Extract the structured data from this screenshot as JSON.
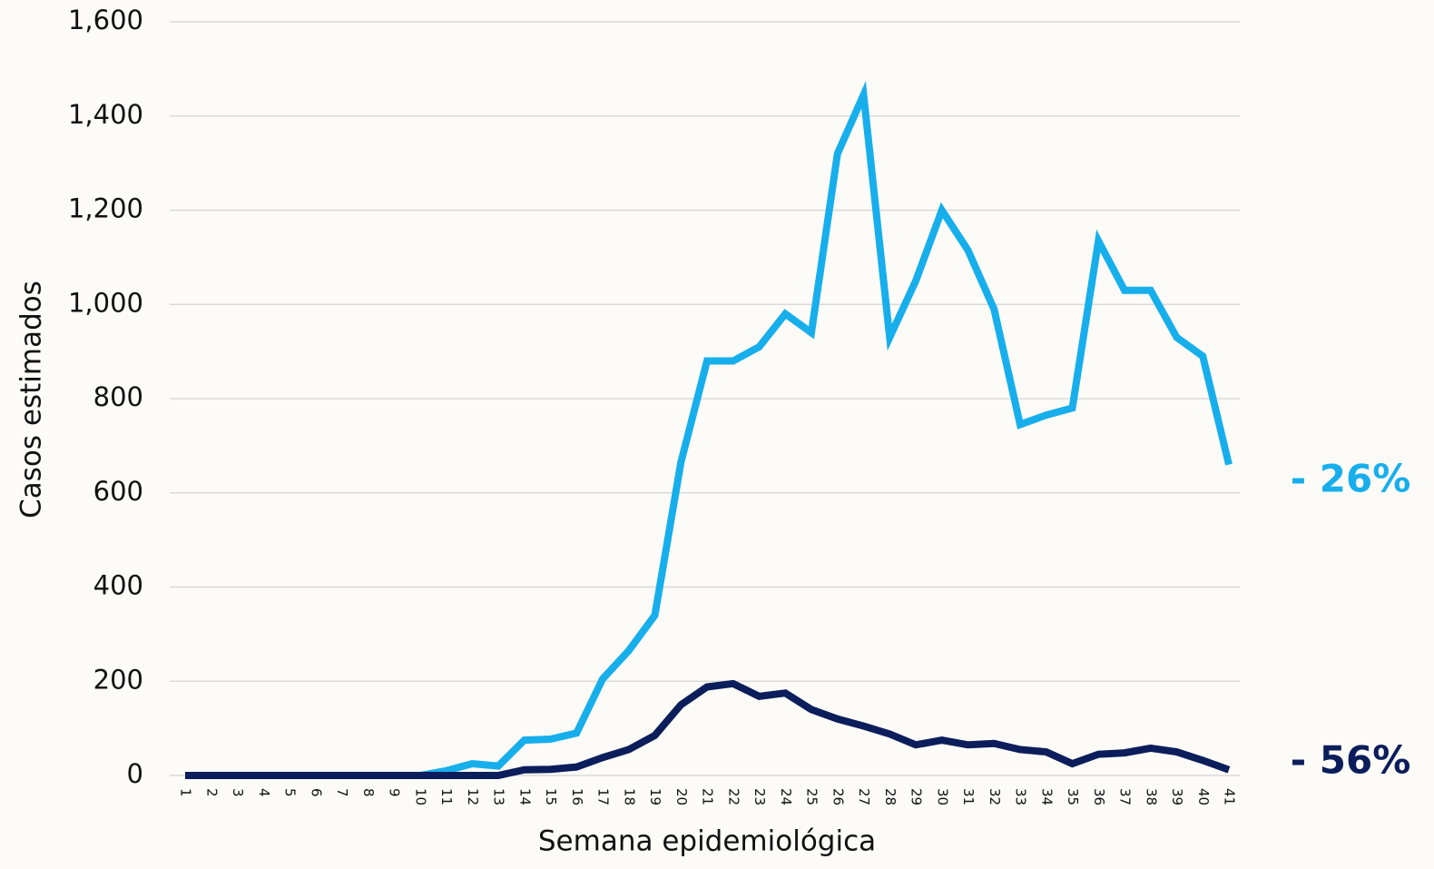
{
  "chart_data": {
    "type": "line",
    "x_label": "Semana epidemiológica",
    "y_label": "Casos estimados",
    "categories": [
      "1",
      "2",
      "3",
      "4",
      "5",
      "6",
      "7",
      "8",
      "9",
      "10",
      "11",
      "12",
      "13",
      "14",
      "15",
      "16",
      "17",
      "18",
      "19",
      "20",
      "21",
      "22",
      "23",
      "24",
      "25",
      "26",
      "27",
      "28",
      "29",
      "30",
      "31",
      "32",
      "33",
      "34",
      "35",
      "36",
      "37",
      "38",
      "39",
      "40",
      "41"
    ],
    "series": [
      {
        "color": "#17aeec",
        "values": [
          0,
          0,
          0,
          0,
          0,
          0,
          0,
          0,
          0,
          0,
          10,
          25,
          20,
          75,
          77,
          90,
          205,
          265,
          340,
          665,
          880,
          880,
          910,
          980,
          940,
          1320,
          1445,
          930,
          1050,
          1200,
          1115,
          990,
          745,
          765,
          780,
          1135,
          1030,
          1030,
          930,
          890,
          660
        ]
      },
      {
        "color": "#0b1d5a",
        "values": [
          0,
          0,
          0,
          0,
          0,
          0,
          0,
          0,
          0,
          0,
          0,
          0,
          0,
          12,
          13,
          18,
          38,
          55,
          85,
          150,
          188,
          195,
          168,
          175,
          140,
          120,
          105,
          88,
          65,
          75,
          65,
          68,
          55,
          50,
          25,
          45,
          48,
          58,
          50,
          32,
          12
        ]
      }
    ],
    "ylim": [
      0,
      1600
    ],
    "yticks": [
      0,
      200,
      400,
      600,
      800,
      {
        "value": 1000,
        "label": "1,000"
      },
      {
        "value": 1200,
        "label": "1,200"
      },
      {
        "value": 1400,
        "label": "1,400"
      },
      {
        "value": 1600,
        "label": "1,600"
      }
    ],
    "grid": true,
    "annotations": [
      {
        "text": "- 26%",
        "color": "#17aeec"
      },
      {
        "text": "- 56%",
        "color": "#0b1d5a"
      }
    ]
  }
}
